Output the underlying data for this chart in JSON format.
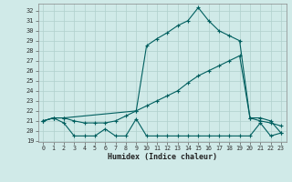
{
  "xlabel": "Humidex (Indice chaleur)",
  "bg_color": "#d0eae8",
  "grid_color": "#b0d0cc",
  "line_color": "#005f5f",
  "xlim": [
    -0.5,
    23.5
  ],
  "ylim": [
    18.9,
    32.7
  ],
  "xticks": [
    0,
    1,
    2,
    3,
    4,
    5,
    6,
    7,
    8,
    9,
    10,
    11,
    12,
    13,
    14,
    15,
    16,
    17,
    18,
    19,
    20,
    21,
    22,
    23
  ],
  "yticks": [
    19,
    20,
    21,
    22,
    23,
    24,
    25,
    26,
    27,
    28,
    29,
    30,
    31,
    32
  ],
  "line1": {
    "x": [
      0,
      1,
      2,
      3,
      4,
      5,
      6,
      7,
      8,
      9,
      10,
      11,
      12,
      13,
      14,
      15,
      16,
      17,
      18,
      19,
      20,
      21,
      22,
      23
    ],
    "y": [
      21.0,
      21.3,
      20.8,
      19.5,
      19.5,
      19.5,
      20.2,
      19.5,
      19.5,
      21.2,
      19.5,
      19.5,
      19.5,
      19.5,
      19.5,
      19.5,
      19.5,
      19.5,
      19.5,
      19.5,
      19.5,
      20.8,
      19.5,
      19.8
    ]
  },
  "line2": {
    "x": [
      0,
      1,
      2,
      3,
      4,
      5,
      6,
      7,
      8,
      9,
      10,
      11,
      12,
      13,
      14,
      15,
      16,
      17,
      18,
      19,
      20,
      21,
      22,
      23
    ],
    "y": [
      21.0,
      21.3,
      21.3,
      21.0,
      20.8,
      20.8,
      20.8,
      21.0,
      21.5,
      22.0,
      22.5,
      23.0,
      23.5,
      24.0,
      24.8,
      25.5,
      26.0,
      26.5,
      27.0,
      27.5,
      21.3,
      21.0,
      20.8,
      20.5
    ]
  },
  "line3": {
    "x": [
      0,
      1,
      2,
      9,
      10,
      11,
      12,
      13,
      14,
      15,
      16,
      17,
      18,
      19,
      20,
      21,
      22,
      23
    ],
    "y": [
      21.0,
      21.3,
      21.3,
      22.0,
      28.5,
      29.2,
      29.8,
      30.5,
      31.0,
      32.3,
      31.0,
      30.0,
      29.5,
      29.0,
      21.3,
      21.3,
      21.0,
      19.8
    ]
  }
}
